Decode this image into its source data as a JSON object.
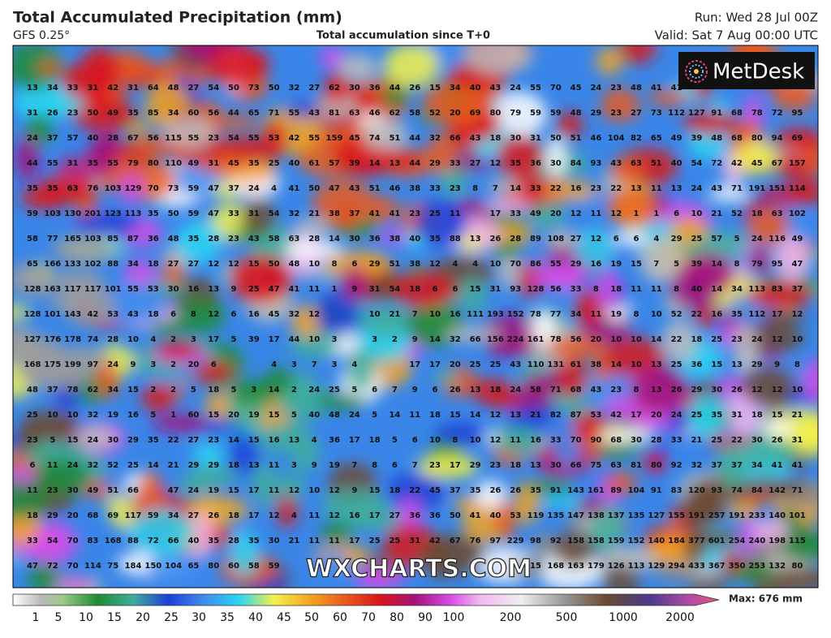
{
  "header": {
    "title": "Total Accumulated Precipitation (mm)",
    "model": "GFS 0.25°",
    "subtitle": "Total accumulation since T+0",
    "run": "Run: Wed 28 Jul 00Z",
    "valid": "Valid: Sat 7 Aug 00:00 UTC"
  },
  "logo": "MetDesk",
  "watermark": "WXCHARTS.COM",
  "grid": {
    "rows": [
      [
        13,
        34,
        33,
        31,
        42,
        31,
        64,
        48,
        27,
        54,
        50,
        73,
        50,
        32,
        27,
        62,
        30,
        36,
        44,
        26,
        15,
        34,
        40,
        43,
        24,
        55,
        70,
        45,
        24,
        23,
        48,
        41,
        41,
        null,
        null,
        null,
        null,
        null,
        null
      ],
      [
        31,
        26,
        23,
        50,
        49,
        35,
        85,
        34,
        60,
        56,
        44,
        65,
        71,
        55,
        43,
        81,
        63,
        46,
        62,
        58,
        52,
        20,
        69,
        80,
        79,
        59,
        59,
        48,
        29,
        23,
        27,
        73,
        112,
        127,
        91,
        68,
        78,
        72,
        95
      ],
      [
        24,
        37,
        57,
        40,
        28,
        67,
        56,
        115,
        55,
        23,
        54,
        55,
        53,
        42,
        55,
        159,
        45,
        74,
        51,
        44,
        32,
        66,
        43,
        18,
        30,
        31,
        50,
        51,
        46,
        104,
        82,
        65,
        49,
        39,
        48,
        68,
        80,
        94,
        69
      ],
      [
        44,
        55,
        31,
        35,
        55,
        79,
        80,
        110,
        49,
        31,
        45,
        35,
        25,
        40,
        61,
        57,
        39,
        14,
        13,
        44,
        29,
        33,
        27,
        12,
        35,
        36,
        30,
        84,
        93,
        43,
        63,
        51,
        40,
        54,
        72,
        42,
        45,
        67,
        157
      ],
      [
        35,
        35,
        63,
        76,
        103,
        129,
        70,
        73,
        59,
        47,
        37,
        24,
        4,
        41,
        50,
        47,
        43,
        51,
        46,
        38,
        33,
        23,
        8,
        7,
        14,
        33,
        22,
        16,
        23,
        22,
        13,
        11,
        13,
        24,
        43,
        71,
        191,
        151,
        114
      ],
      [
        59,
        103,
        130,
        201,
        123,
        113,
        35,
        50,
        59,
        47,
        33,
        31,
        54,
        32,
        21,
        38,
        37,
        41,
        41,
        23,
        25,
        11,
        null,
        17,
        33,
        49,
        20,
        12,
        11,
        12,
        1,
        1,
        6,
        10,
        21,
        52,
        18,
        63,
        102
      ],
      [
        58,
        77,
        165,
        103,
        85,
        87,
        36,
        48,
        35,
        28,
        23,
        43,
        58,
        63,
        28,
        14,
        30,
        36,
        38,
        40,
        35,
        88,
        13,
        26,
        28,
        89,
        108,
        27,
        12,
        6,
        6,
        4,
        29,
        25,
        57,
        5,
        24,
        116,
        49
      ],
      [
        65,
        166,
        133,
        102,
        88,
        34,
        18,
        27,
        27,
        12,
        12,
        15,
        50,
        48,
        10,
        8,
        6,
        29,
        51,
        38,
        12,
        4,
        4,
        10,
        70,
        86,
        55,
        29,
        16,
        19,
        15,
        7,
        5,
        39,
        14,
        8,
        79,
        95,
        47
      ],
      [
        128,
        163,
        117,
        117,
        101,
        55,
        53,
        30,
        16,
        13,
        9,
        25,
        47,
        41,
        11,
        1,
        9,
        31,
        54,
        18,
        6,
        6,
        15,
        31,
        93,
        128,
        56,
        33,
        8,
        18,
        11,
        11,
        8,
        40,
        14,
        34,
        113,
        83,
        37
      ],
      [
        128,
        101,
        143,
        42,
        53,
        43,
        18,
        6,
        8,
        12,
        6,
        16,
        45,
        32,
        12,
        null,
        null,
        10,
        21,
        7,
        10,
        16,
        111,
        193,
        152,
        78,
        77,
        34,
        11,
        19,
        8,
        10,
        52,
        22,
        16,
        35,
        112,
        17,
        12
      ],
      [
        127,
        176,
        178,
        74,
        28,
        10,
        4,
        2,
        3,
        17,
        5,
        39,
        17,
        44,
        10,
        3,
        null,
        3,
        2,
        9,
        14,
        32,
        66,
        156,
        224,
        161,
        78,
        56,
        20,
        10,
        10,
        14,
        22,
        18,
        25,
        23,
        24,
        12,
        10
      ],
      [
        168,
        175,
        199,
        97,
        24,
        9,
        3,
        2,
        20,
        6,
        null,
        null,
        4,
        3,
        7,
        3,
        4,
        null,
        null,
        17,
        17,
        20,
        25,
        25,
        43,
        110,
        131,
        61,
        38,
        14,
        10,
        13,
        25,
        36,
        15,
        13,
        29,
        9,
        8
      ],
      [
        48,
        37,
        78,
        62,
        34,
        15,
        2,
        2,
        5,
        18,
        5,
        3,
        14,
        2,
        24,
        25,
        5,
        6,
        7,
        9,
        6,
        26,
        13,
        18,
        24,
        58,
        71,
        68,
        43,
        23,
        8,
        13,
        26,
        29,
        30,
        26,
        12,
        12,
        10
      ],
      [
        25,
        10,
        10,
        32,
        19,
        16,
        5,
        1,
        60,
        15,
        20,
        19,
        15,
        5,
        40,
        48,
        24,
        5,
        14,
        11,
        18,
        15,
        14,
        12,
        13,
        21,
        82,
        87,
        53,
        42,
        17,
        20,
        24,
        25,
        35,
        31,
        18,
        15,
        21
      ],
      [
        23,
        5,
        15,
        24,
        30,
        29,
        35,
        22,
        27,
        23,
        14,
        15,
        16,
        13,
        4,
        36,
        17,
        18,
        5,
        6,
        10,
        8,
        10,
        12,
        11,
        16,
        33,
        70,
        90,
        68,
        30,
        28,
        33,
        21,
        25,
        22,
        30,
        26,
        31
      ],
      [
        6,
        11,
        24,
        32,
        52,
        25,
        14,
        21,
        29,
        29,
        18,
        13,
        11,
        3,
        9,
        19,
        7,
        8,
        6,
        7,
        23,
        17,
        29,
        23,
        18,
        13,
        30,
        66,
        75,
        63,
        81,
        80,
        92,
        32,
        37,
        37,
        34,
        41,
        41
      ],
      [
        11,
        23,
        30,
        49,
        51,
        66,
        null,
        47,
        24,
        19,
        15,
        17,
        11,
        12,
        10,
        12,
        9,
        15,
        18,
        22,
        45,
        37,
        35,
        26,
        26,
        35,
        91,
        143,
        161,
        89,
        104,
        91,
        83,
        120,
        93,
        74,
        84,
        142,
        71
      ],
      [
        18,
        29,
        20,
        68,
        69,
        117,
        59,
        34,
        27,
        26,
        18,
        17,
        12,
        4,
        11,
        12,
        16,
        17,
        27,
        36,
        36,
        50,
        41,
        40,
        53,
        119,
        135,
        147,
        138,
        137,
        135,
        127,
        155,
        191,
        257,
        191,
        233,
        140,
        101
      ],
      [
        33,
        54,
        70,
        83,
        168,
        88,
        72,
        66,
        40,
        35,
        28,
        35,
        30,
        21,
        11,
        11,
        17,
        25,
        25,
        31,
        42,
        67,
        76,
        97,
        229,
        98,
        92,
        158,
        158,
        159,
        152,
        140,
        184,
        377,
        601,
        254,
        240,
        198,
        115
      ],
      [
        47,
        72,
        70,
        114,
        75,
        184,
        150,
        104,
        65,
        80,
        60,
        58,
        59,
        null,
        null,
        null,
        null,
        null,
        null,
        null,
        null,
        null,
        null,
        null,
        null,
        15,
        168,
        163,
        179,
        126,
        113,
        129,
        294,
        433,
        367,
        350,
        253,
        132,
        80
      ]
    ]
  },
  "colorbar": {
    "labels": [
      1,
      5,
      10,
      15,
      20,
      25,
      30,
      35,
      40,
      45,
      50,
      60,
      70,
      80,
      90,
      100,
      200,
      500,
      1000,
      2000
    ],
    "max_label": "Max: 676 mm"
  }
}
